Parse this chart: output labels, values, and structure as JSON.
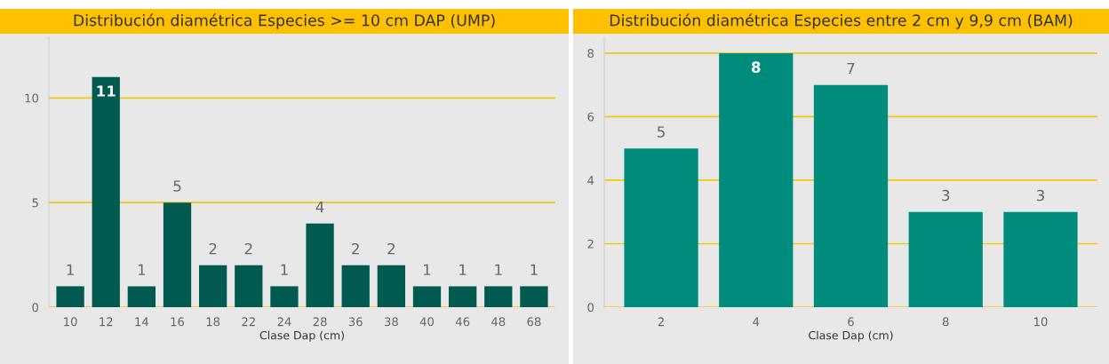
{
  "chart_data": [
    {
      "type": "bar",
      "title": "Distribución diamétrica Especies >= 10 cm DAP (UMP)",
      "xlabel": "Clase Dap (cm)",
      "categories": [
        "10",
        "12",
        "14",
        "16",
        "18",
        "22",
        "24",
        "28",
        "36",
        "38",
        "40",
        "46",
        "48",
        "68"
      ],
      "values": [
        1,
        11,
        1,
        5,
        2,
        2,
        1,
        4,
        2,
        2,
        1,
        1,
        1,
        1
      ],
      "color": "#005a50",
      "ylim": [
        0,
        12.9
      ],
      "yticks": [
        0,
        5,
        10
      ],
      "grid": "y",
      "data_labels": true
    },
    {
      "type": "bar",
      "title": "Distribución diamétrica Especies entre 2 cm y 9,9 cm (BAM)",
      "xlabel": "Clase Dap (cm)",
      "categories": [
        "2",
        "4",
        "6",
        "8",
        "10"
      ],
      "values": [
        5,
        8,
        7,
        3,
        3
      ],
      "color": "#008c7c",
      "ylim": [
        0,
        8.5
      ],
      "yticks": [
        0,
        2,
        4,
        6,
        8
      ],
      "grid": "y",
      "data_labels": true
    }
  ]
}
